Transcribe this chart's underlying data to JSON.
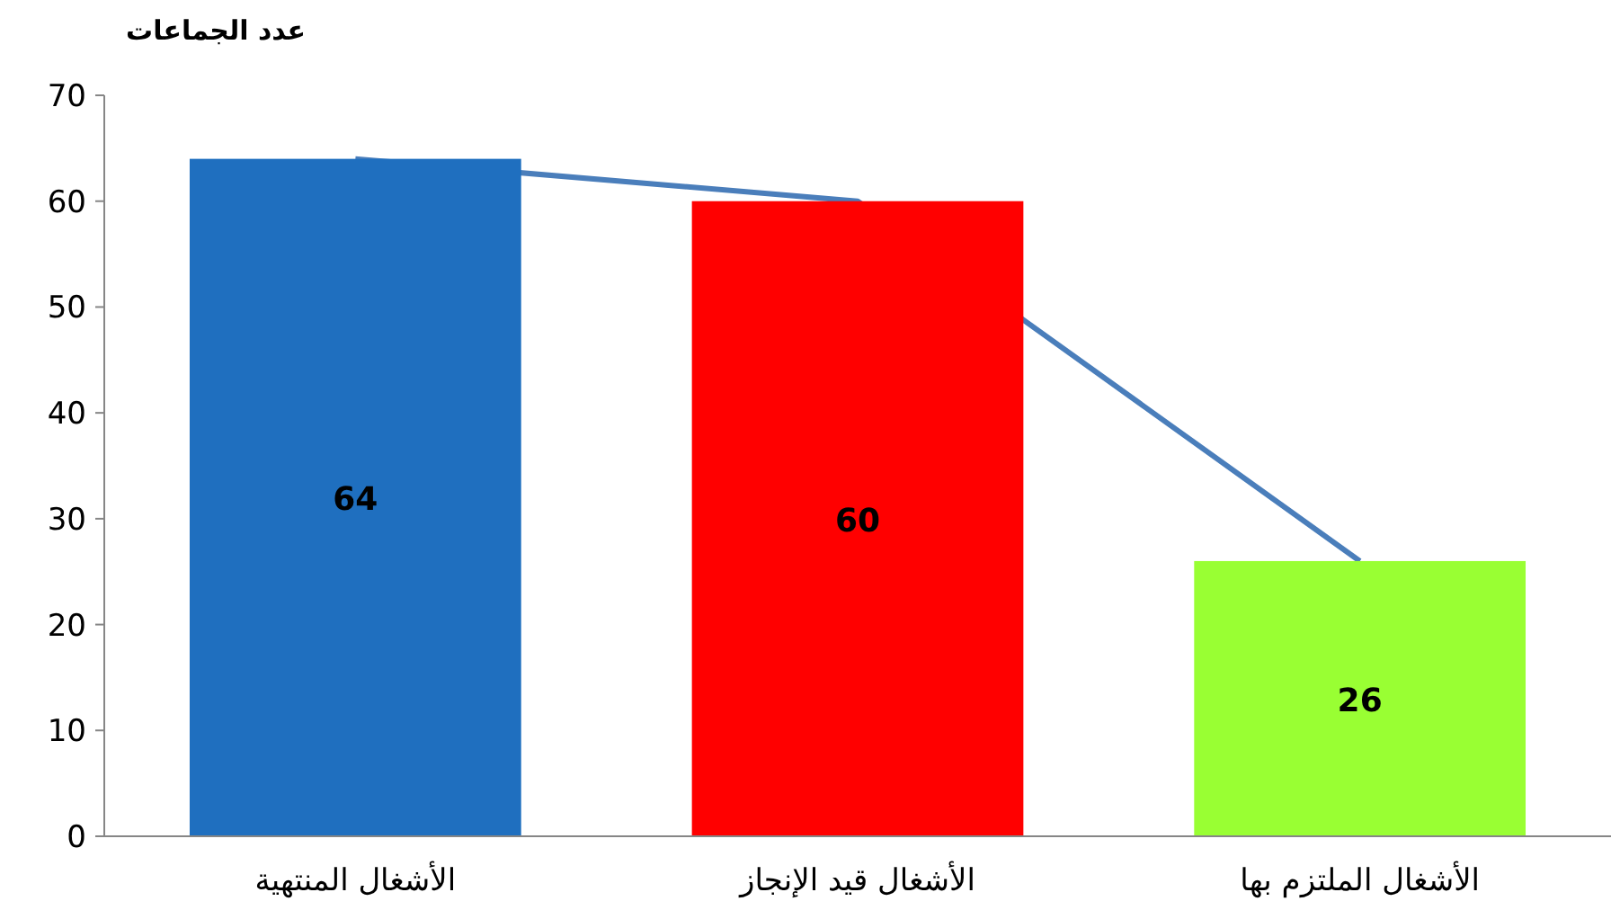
{
  "chart_data": {
    "type": "bar",
    "ylabel": "عدد الجماعات",
    "categories": [
      "الأشغال المنتهية",
      "الأشغال قيد الإنجاز",
      "الأشغال الملتزم  بها"
    ],
    "series": [
      {
        "colors": [
          "#1f6fbf",
          "#ff0000",
          "#99ff33"
        ],
        "values": [
          64,
          60,
          26
        ],
        "value_labels": [
          "64",
          "60",
          "26"
        ]
      },
      {
        "type": "line",
        "color": "#4a7ebb",
        "values": [
          64,
          60,
          26
        ]
      }
    ],
    "ylim": [
      0,
      70
    ],
    "yticks": [
      0,
      10,
      20,
      30,
      40,
      50,
      60,
      70
    ],
    "grid": false
  }
}
